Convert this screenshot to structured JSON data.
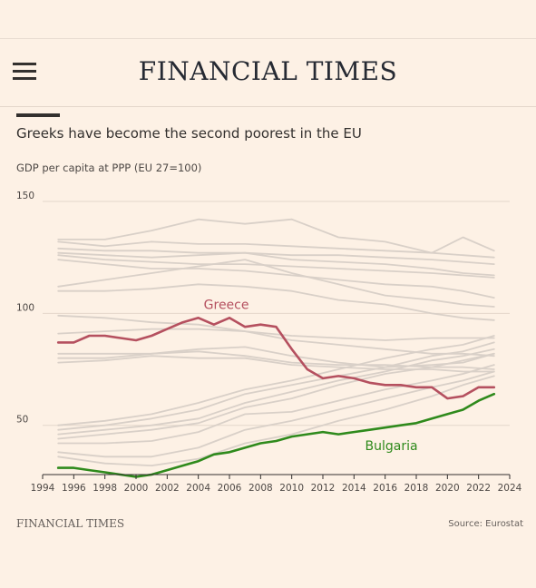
{
  "header": {
    "masthead": "FINANCIAL TIMES"
  },
  "chart_data": {
    "type": "line",
    "title": "Greeks have become the second poorest in the EU",
    "subtitle": "GDP per capita at PPP (EU 27=100)",
    "xlim": [
      1994,
      2024
    ],
    "ylim": [
      28,
      150
    ],
    "x_ticks": [
      1994,
      1996,
      1998,
      2000,
      2002,
      2004,
      2006,
      2008,
      2010,
      2012,
      2014,
      2016,
      2018,
      2020,
      2022,
      2024
    ],
    "y_ticks": [
      50,
      100,
      150
    ],
    "grid": true,
    "colors": {
      "greece": "#b5505f",
      "bulgaria": "#2f8a1c",
      "others": "#d9d0c8",
      "grid": "#e4d7cb"
    },
    "series": [
      {
        "name": "Greece",
        "highlight": true,
        "x": [
          1995,
          1996,
          1997,
          1998,
          1999,
          2000,
          2001,
          2002,
          2003,
          2004,
          2005,
          2006,
          2007,
          2008,
          2009,
          2010,
          2011,
          2012,
          2013,
          2014,
          2015,
          2016,
          2017,
          2018,
          2019,
          2020,
          2021,
          2022,
          2023
        ],
        "values": [
          87,
          87,
          90,
          90,
          89,
          88,
          90,
          93,
          96,
          98,
          95,
          98,
          94,
          95,
          94,
          84,
          75,
          71,
          72,
          71,
          69,
          68,
          68,
          67,
          67,
          62,
          63,
          67,
          67
        ]
      },
      {
        "name": "Bulgaria",
        "highlight": true,
        "x": [
          1995,
          1996,
          1997,
          1998,
          1999,
          2000,
          2001,
          2002,
          2003,
          2004,
          2005,
          2006,
          2007,
          2008,
          2009,
          2010,
          2011,
          2012,
          2013,
          2014,
          2015,
          2016,
          2017,
          2018,
          2019,
          2020,
          2021,
          2022,
          2023
        ],
        "values": [
          31,
          31,
          30,
          29,
          28,
          27,
          28,
          30,
          32,
          34,
          37,
          38,
          40,
          42,
          43,
          45,
          46,
          47,
          46,
          47,
          48,
          49,
          50,
          51,
          53,
          55,
          57,
          61,
          64
        ]
      },
      {
        "x": [
          1995,
          1998,
          2001,
          2004,
          2007,
          2010,
          2013,
          2016,
          2019,
          2021,
          2023
        ],
        "values": [
          133,
          133,
          137,
          142,
          140,
          142,
          134,
          132,
          127,
          134,
          128
        ]
      },
      {
        "x": [
          1995,
          1998,
          2001,
          2004,
          2007,
          2010,
          2013,
          2016,
          2019,
          2021,
          2023
        ],
        "values": [
          132,
          130,
          132,
          131,
          131,
          130,
          129,
          128,
          127,
          126,
          125
        ]
      },
      {
        "x": [
          1995,
          1998,
          2001,
          2004,
          2007,
          2010,
          2013,
          2016,
          2019,
          2021,
          2023
        ],
        "values": [
          129,
          128,
          128,
          127,
          127,
          126,
          126,
          125,
          124,
          123,
          122
        ]
      },
      {
        "x": [
          1995,
          1998,
          2001,
          2004,
          2007,
          2010,
          2013,
          2016,
          2019,
          2021,
          2023
        ],
        "values": [
          127,
          126,
          125,
          126,
          127,
          124,
          123,
          122,
          120,
          118,
          117
        ]
      },
      {
        "x": [
          1995,
          1998,
          2001,
          2004,
          2007,
          2010,
          2013,
          2016,
          2019,
          2021,
          2023
        ],
        "values": [
          126,
          124,
          123,
          122,
          122,
          121,
          120,
          119,
          118,
          117,
          116
        ]
      },
      {
        "x": [
          1995,
          1998,
          2001,
          2004,
          2007,
          2010,
          2013,
          2016,
          2019,
          2021,
          2023
        ],
        "values": [
          124,
          122,
          120,
          120,
          119,
          117,
          115,
          113,
          112,
          110,
          107
        ]
      },
      {
        "x": [
          1995,
          1998,
          2001,
          2004,
          2007,
          2010,
          2013,
          2016,
          2019,
          2021,
          2023
        ],
        "values": [
          112,
          115,
          118,
          121,
          124,
          118,
          113,
          108,
          106,
          104,
          103
        ]
      },
      {
        "x": [
          1995,
          1998,
          2001,
          2004,
          2007,
          2010,
          2013,
          2016,
          2019,
          2021,
          2023
        ],
        "values": [
          110,
          110,
          111,
          113,
          112,
          110,
          106,
          104,
          100,
          98,
          97
        ]
      },
      {
        "x": [
          1995,
          1998,
          2001,
          2004,
          2007,
          2010,
          2013,
          2016,
          2019,
          2021,
          2023
        ],
        "values": [
          99,
          98,
          96,
          95,
          92,
          90,
          89,
          88,
          89,
          89,
          89
        ]
      },
      {
        "x": [
          1995,
          1998,
          2001,
          2004,
          2007,
          2010,
          2013,
          2016,
          2019,
          2021,
          2023
        ],
        "values": [
          91,
          92,
          93,
          93,
          92,
          88,
          86,
          84,
          82,
          82,
          81
        ]
      },
      {
        "x": [
          1995,
          1998,
          2001,
          2004,
          2007,
          2010,
          2013,
          2016,
          2019,
          2021,
          2023
        ],
        "values": [
          82,
          82,
          82,
          84,
          85,
          81,
          78,
          76,
          77,
          78,
          82
        ]
      },
      {
        "x": [
          1995,
          1998,
          2001,
          2004,
          2007,
          2010,
          2013,
          2016,
          2019,
          2021,
          2023
        ],
        "values": [
          80,
          80,
          82,
          83,
          81,
          78,
          77,
          77,
          76,
          76,
          75
        ]
      },
      {
        "x": [
          1995,
          1998,
          2001,
          2004,
          2007,
          2010,
          2013,
          2016,
          2019,
          2021,
          2023
        ],
        "values": [
          78,
          79,
          81,
          80,
          80,
          77,
          76,
          75,
          75,
          74,
          74
        ]
      },
      {
        "x": [
          1995,
          1998,
          2001,
          2004,
          2007,
          2010,
          2013,
          2016,
          2019,
          2021,
          2023
        ],
        "values": [
          50,
          52,
          55,
          60,
          66,
          70,
          75,
          80,
          84,
          86,
          90
        ]
      },
      {
        "x": [
          1995,
          1998,
          2001,
          2004,
          2007,
          2010,
          2013,
          2016,
          2019,
          2021,
          2023
        ],
        "values": [
          48,
          50,
          53,
          57,
          64,
          68,
          72,
          76,
          81,
          83,
          87
        ]
      },
      {
        "x": [
          1995,
          1998,
          2001,
          2004,
          2007,
          2010,
          2013,
          2016,
          2019,
          2021,
          2023
        ],
        "values": [
          46,
          48,
          50,
          53,
          60,
          65,
          70,
          74,
          79,
          81,
          84
        ]
      },
      {
        "x": [
          1995,
          1998,
          2001,
          2004,
          2007,
          2010,
          2013,
          2016,
          2019,
          2021,
          2023
        ],
        "values": [
          44,
          46,
          48,
          51,
          58,
          62,
          68,
          73,
          76,
          79,
          82
        ]
      },
      {
        "x": [
          1995,
          1998,
          2001,
          2004,
          2007,
          2010,
          2013,
          2016,
          2019,
          2021,
          2023
        ],
        "values": [
          42,
          42,
          43,
          47,
          55,
          56,
          61,
          66,
          70,
          73,
          77
        ]
      },
      {
        "x": [
          1995,
          1998,
          2001,
          2004,
          2007,
          2010,
          2013,
          2016,
          2019,
          2021,
          2023
        ],
        "values": [
          38,
          36,
          36,
          40,
          48,
          52,
          57,
          62,
          67,
          70,
          74
        ]
      },
      {
        "x": [
          1995,
          1998,
          2001,
          2004,
          2007,
          2010,
          2013,
          2016,
          2019,
          2021,
          2023
        ],
        "values": [
          36,
          33,
          32,
          35,
          42,
          46,
          52,
          57,
          63,
          68,
          72
        ]
      }
    ],
    "labels": [
      {
        "series": "Greece",
        "text": "Greece"
      },
      {
        "series": "Bulgaria",
        "text": "Bulgaria"
      }
    ]
  },
  "footer": {
    "brand": "FINANCIAL TIMES",
    "source": "Source: Eurostat"
  }
}
